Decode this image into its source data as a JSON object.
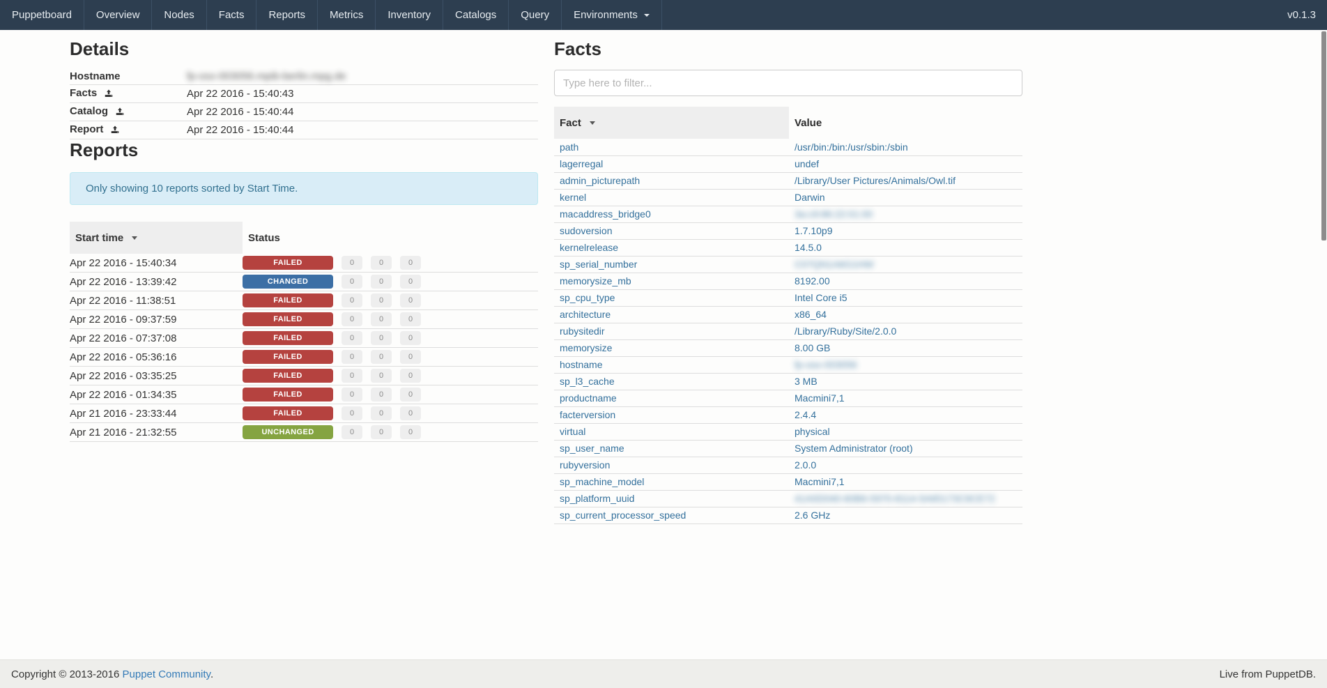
{
  "navbar": {
    "brand": "Puppetboard",
    "items": [
      "Overview",
      "Nodes",
      "Facts",
      "Reports",
      "Metrics",
      "Inventory",
      "Catalogs",
      "Query"
    ],
    "dropdown": {
      "label": "Environments"
    },
    "version": "v0.1.3"
  },
  "details": {
    "title": "Details",
    "rows": [
      {
        "label": "Hostname",
        "icon": "",
        "value": "fp-osx-003056.mpib-berlin.mpg.de",
        "blurred": true
      },
      {
        "label": "Facts",
        "icon": "upload-icon",
        "value": "Apr 22 2016 - 15:40:43",
        "blurred": false
      },
      {
        "label": "Catalog",
        "icon": "upload-icon",
        "value": "Apr 22 2016 - 15:40:44",
        "blurred": false
      },
      {
        "label": "Report",
        "icon": "upload-icon",
        "value": "Apr 22 2016 - 15:40:44",
        "blurred": false
      }
    ]
  },
  "reports": {
    "title": "Reports",
    "notice": "Only showing 10 reports sorted by Start Time.",
    "columns": [
      "Start time",
      "Status"
    ],
    "status_colors": {
      "FAILED": "#b5423f",
      "CHANGED": "#3c6fa5",
      "UNCHANGED": "#85a441"
    },
    "rows": [
      {
        "start_time": "Apr 22 2016 - 15:40:34",
        "status": "FAILED",
        "counts": [
          "0",
          "0",
          "0"
        ]
      },
      {
        "start_time": "Apr 22 2016 - 13:39:42",
        "status": "CHANGED",
        "counts": [
          "0",
          "0",
          "0"
        ]
      },
      {
        "start_time": "Apr 22 2016 - 11:38:51",
        "status": "FAILED",
        "counts": [
          "0",
          "0",
          "0"
        ]
      },
      {
        "start_time": "Apr 22 2016 - 09:37:59",
        "status": "FAILED",
        "counts": [
          "0",
          "0",
          "0"
        ]
      },
      {
        "start_time": "Apr 22 2016 - 07:37:08",
        "status": "FAILED",
        "counts": [
          "0",
          "0",
          "0"
        ]
      },
      {
        "start_time": "Apr 22 2016 - 05:36:16",
        "status": "FAILED",
        "counts": [
          "0",
          "0",
          "0"
        ]
      },
      {
        "start_time": "Apr 22 2016 - 03:35:25",
        "status": "FAILED",
        "counts": [
          "0",
          "0",
          "0"
        ]
      },
      {
        "start_time": "Apr 22 2016 - 01:34:35",
        "status": "FAILED",
        "counts": [
          "0",
          "0",
          "0"
        ]
      },
      {
        "start_time": "Apr 21 2016 - 23:33:44",
        "status": "FAILED",
        "counts": [
          "0",
          "0",
          "0"
        ]
      },
      {
        "start_time": "Apr 21 2016 - 21:32:55",
        "status": "UNCHANGED",
        "counts": [
          "0",
          "0",
          "0"
        ]
      }
    ]
  },
  "facts": {
    "title": "Facts",
    "filter_placeholder": "Type here to filter...",
    "columns": [
      "Fact",
      "Value"
    ],
    "rows": [
      {
        "fact": "path",
        "value": "/usr/bin:/bin:/usr/sbin:/sbin",
        "blurred": false
      },
      {
        "fact": "lagerregal",
        "value": "undef",
        "blurred": false
      },
      {
        "fact": "admin_picturepath",
        "value": "/Library/User Pictures/Animals/Owl.tif",
        "blurred": false
      },
      {
        "fact": "kernel",
        "value": "Darwin",
        "blurred": false
      },
      {
        "fact": "macaddress_bridge0",
        "value": "3a:c9:86:22:01:00",
        "blurred": true
      },
      {
        "fact": "sudoversion",
        "value": "1.7.10p9",
        "blurred": false
      },
      {
        "fact": "kernelrelease",
        "value": "14.5.0",
        "blurred": false
      },
      {
        "fact": "sp_serial_number",
        "value": "C07QN1A6G1HW",
        "blurred": true
      },
      {
        "fact": "memorysize_mb",
        "value": "8192.00",
        "blurred": false
      },
      {
        "fact": "sp_cpu_type",
        "value": "Intel Core i5",
        "blurred": false
      },
      {
        "fact": "architecture",
        "value": "x86_64",
        "blurred": false
      },
      {
        "fact": "rubysitedir",
        "value": "/Library/Ruby/Site/2.0.0",
        "blurred": false
      },
      {
        "fact": "memorysize",
        "value": "8.00 GB",
        "blurred": false
      },
      {
        "fact": "hostname",
        "value": "fp-osx-003056",
        "blurred": true
      },
      {
        "fact": "sp_l3_cache",
        "value": "3 MB",
        "blurred": false
      },
      {
        "fact": "productname",
        "value": "Macmini7,1",
        "blurred": false
      },
      {
        "fact": "facterversion",
        "value": "2.4.4",
        "blurred": false
      },
      {
        "fact": "virtual",
        "value": "physical",
        "blurred": false
      },
      {
        "fact": "sp_user_name",
        "value": "System Administrator (root)",
        "blurred": false
      },
      {
        "fact": "rubyversion",
        "value": "2.0.0",
        "blurred": false
      },
      {
        "fact": "sp_machine_model",
        "value": "Macmini7,1",
        "blurred": false
      },
      {
        "fact": "sp_platform_uuid",
        "value": "41A0D040-60B6-5970-8114-5A65173C9CE72",
        "blurred": true
      },
      {
        "fact": "sp_current_processor_speed",
        "value": "2.6 GHz",
        "blurred": false
      }
    ]
  },
  "footer": {
    "copyright_prefix": "Copyright © 2013-2016 ",
    "copyright_link": "Puppet Community",
    "copyright_suffix": ".",
    "right_text": "Live from PuppetDB."
  }
}
